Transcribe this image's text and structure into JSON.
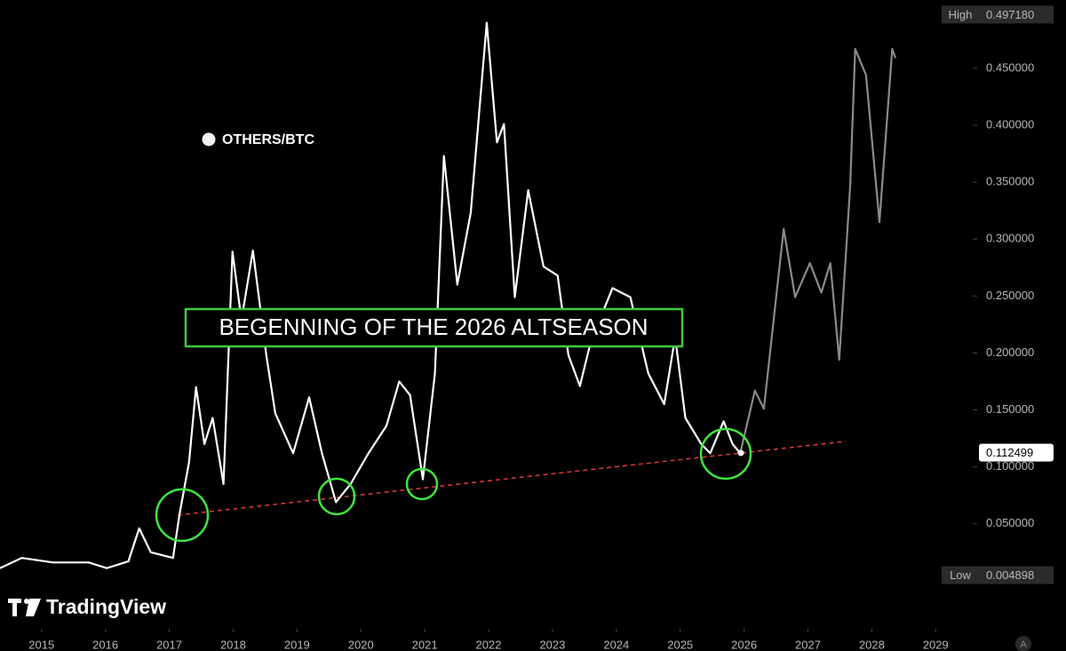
{
  "chart_data": {
    "type": "line",
    "annotation": "BEGENNING OF THE 2026 ALTSEASON",
    "brand": "TradingView",
    "xlim": [
      2014.35,
      2029.58
    ],
    "xticks": [
      2015,
      2016,
      2017,
      2018,
      2019,
      2020,
      2021,
      2022,
      2023,
      2024,
      2025,
      2026,
      2027,
      2028,
      2029
    ],
    "ylim": [
      -0.036,
      0.51
    ],
    "yticks": [
      {
        "value": 0.05,
        "label": "0.050000"
      },
      {
        "value": 0.1,
        "label": "0.100000"
      },
      {
        "value": 0.15,
        "label": "0.150000"
      },
      {
        "value": 0.2,
        "label": "0.200000"
      },
      {
        "value": 0.25,
        "label": "0.250000"
      },
      {
        "value": 0.3,
        "label": "0.300000"
      },
      {
        "value": 0.35,
        "label": "0.350000"
      },
      {
        "value": 0.4,
        "label": "0.400000"
      },
      {
        "value": 0.45,
        "label": "0.450000"
      }
    ],
    "price_labels": {
      "high": {
        "label": "High",
        "value": 0.49718,
        "value_label": "0.497180"
      },
      "current": {
        "value": 0.112499,
        "value_label": "0.112499"
      },
      "low": {
        "label": "Low",
        "value": 0.004898,
        "value_label": "0.004898"
      }
    },
    "series": [
      {
        "name": "OTHERS/BTC",
        "color": "#ffffff",
        "x": [
          2014.35,
          2014.69,
          2015.18,
          2015.74,
          2016.02,
          2016.36,
          2016.53,
          2016.71,
          2017.06,
          2017.16,
          2017.31,
          2017.42,
          2017.55,
          2017.68,
          2017.85,
          2017.99,
          2018.13,
          2018.31,
          2018.52,
          2018.66,
          2018.94,
          2019.19,
          2019.39,
          2019.61,
          2019.84,
          2020.12,
          2020.4,
          2020.6,
          2020.77,
          2020.97,
          2021.16,
          2021.3,
          2021.51,
          2021.72,
          2021.97,
          2022.13,
          2022.24,
          2022.41,
          2022.62,
          2022.86,
          2023.08,
          2023.25,
          2023.43,
          2023.6,
          2023.94,
          2024.22,
          2024.5,
          2024.75,
          2024.92,
          2025.08,
          2025.33,
          2025.47,
          2025.68,
          2025.82,
          2025.94
        ],
        "values": [
          0.011,
          0.02,
          0.016,
          0.016,
          0.011,
          0.017,
          0.046,
          0.025,
          0.02,
          0.058,
          0.104,
          0.17,
          0.12,
          0.143,
          0.085,
          0.289,
          0.229,
          0.29,
          0.198,
          0.147,
          0.112,
          0.161,
          0.112,
          0.069,
          0.085,
          0.112,
          0.136,
          0.175,
          0.163,
          0.089,
          0.182,
          0.373,
          0.26,
          0.323,
          0.49,
          0.385,
          0.401,
          0.249,
          0.343,
          0.276,
          0.268,
          0.198,
          0.171,
          0.21,
          0.257,
          0.249,
          0.182,
          0.155,
          0.214,
          0.143,
          0.12,
          0.112,
          0.14,
          0.12,
          0.112
        ]
      },
      {
        "color": "#8a8a8a",
        "x": [
          2025.94,
          2026.17,
          2026.31,
          2026.62,
          2026.8,
          2027.03,
          2027.21,
          2027.35,
          2027.49,
          2027.66,
          2027.74,
          2027.91,
          2028.12,
          2028.32,
          2028.37
        ],
        "values": [
          0.112,
          0.167,
          0.151,
          0.309,
          0.249,
          0.279,
          0.253,
          0.279,
          0.194,
          0.346,
          0.467,
          0.444,
          0.315,
          0.467,
          0.459
        ]
      }
    ]
  }
}
